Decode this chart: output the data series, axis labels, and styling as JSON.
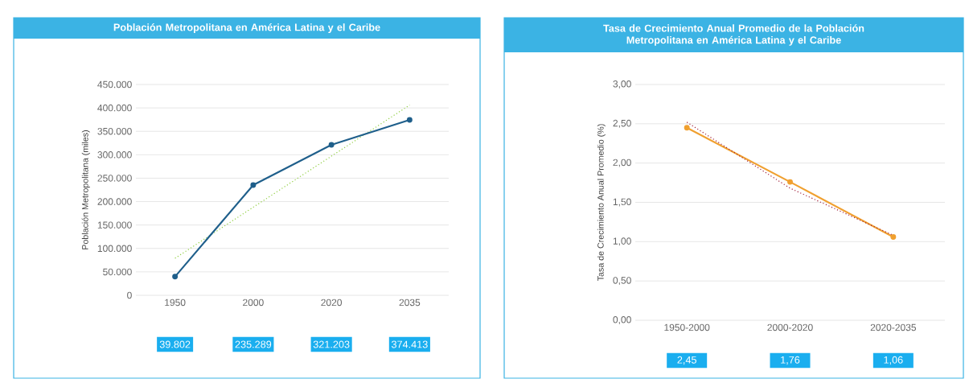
{
  "chart_data": [
    {
      "type": "line",
      "title": "Población Metropolitana en América Latina y el Caribe",
      "ylabel": "Población Metropolitana (miles)",
      "categories": [
        "1950",
        "2000",
        "2020",
        "2035"
      ],
      "ylim": [
        0,
        450000
      ],
      "yticks": [
        {
          "value": 0,
          "label": "0"
        },
        {
          "value": 50000,
          "label": "50.000"
        },
        {
          "value": 100000,
          "label": "100.000"
        },
        {
          "value": 150000,
          "label": "150.000"
        },
        {
          "value": 200000,
          "label": "200.000"
        },
        {
          "value": 250000,
          "label": "250.000"
        },
        {
          "value": 300000,
          "label": "300.000"
        },
        {
          "value": 350000,
          "label": "350.000"
        },
        {
          "value": 400000,
          "label": "400.000"
        },
        {
          "value": 450000,
          "label": "450.000"
        }
      ],
      "grid": "y",
      "series": [
        {
          "color": "#8fce3f",
          "line_style": "dotted",
          "marker": "none",
          "values": [
            79000,
            188000,
            297000,
            406000
          ]
        },
        {
          "color": "#1f5f8b",
          "line_style": "solid",
          "marker": "circle",
          "values": [
            39802,
            235289,
            321203,
            374413
          ],
          "value_labels": [
            "39.802",
            "235.289",
            "321.203",
            "374.413"
          ]
        }
      ]
    },
    {
      "type": "line",
      "title": "Tasa de Crecimiento Anual Promedio de la Población Metropolitana en América Latina y el Caribe",
      "ylabel": "Tasa de Crecimiento Anual Promedio (%)",
      "categories": [
        "1950-2000",
        "2000-2020",
        "2020-2035"
      ],
      "ylim": [
        0,
        3
      ],
      "yticks": [
        {
          "value": 0,
          "label": "0,00"
        },
        {
          "value": 0.5,
          "label": "0,50"
        },
        {
          "value": 1,
          "label": "1,00"
        },
        {
          "value": 1.5,
          "label": "1,50"
        },
        {
          "value": 2,
          "label": "2,00"
        },
        {
          "value": 2.5,
          "label": "2,50"
        },
        {
          "value": 3,
          "label": "3,00"
        }
      ],
      "grid": "y",
      "series": [
        {
          "color": "#f0a030",
          "line_style": "solid",
          "marker": "circle",
          "values": [
            2.45,
            1.76,
            1.06
          ],
          "value_labels": [
            "2,45",
            "1,76",
            "1,06"
          ]
        },
        {
          "color": "#a0203a",
          "line_style": "dotted",
          "marker": "none",
          "values": [
            2.52,
            1.68,
            1.08
          ]
        }
      ]
    }
  ]
}
